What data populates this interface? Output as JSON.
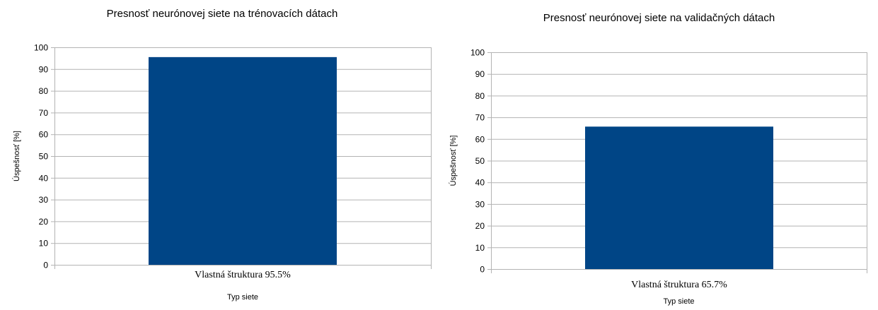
{
  "colors": {
    "bar": "#004586",
    "grid": "#b3b3b3",
    "axis": "#b3b3b3"
  },
  "chart_data": [
    {
      "type": "bar",
      "title": "Presnosť neurónovej siete na trénovacích dátach",
      "xlabel": "Typ siete",
      "ylabel": "Úspešnosť [%]",
      "ylim": [
        0,
        100
      ],
      "yticks": [
        0,
        10,
        20,
        30,
        40,
        50,
        60,
        70,
        80,
        90,
        100
      ],
      "grid": true,
      "legend": "none",
      "categories": [
        "Vlastná štruktura 95.5%"
      ],
      "values": [
        95.5
      ]
    },
    {
      "type": "bar",
      "title": "Presnosť neurónovej siete na validačných dátach",
      "xlabel": "Typ siete",
      "ylabel": "Úspešnosť [%]",
      "ylim": [
        0,
        100
      ],
      "yticks": [
        0,
        10,
        20,
        30,
        40,
        50,
        60,
        70,
        80,
        90,
        100
      ],
      "grid": true,
      "legend": "none",
      "categories": [
        "Vlastná štruktura 65.7%"
      ],
      "values": [
        65.7
      ]
    }
  ]
}
